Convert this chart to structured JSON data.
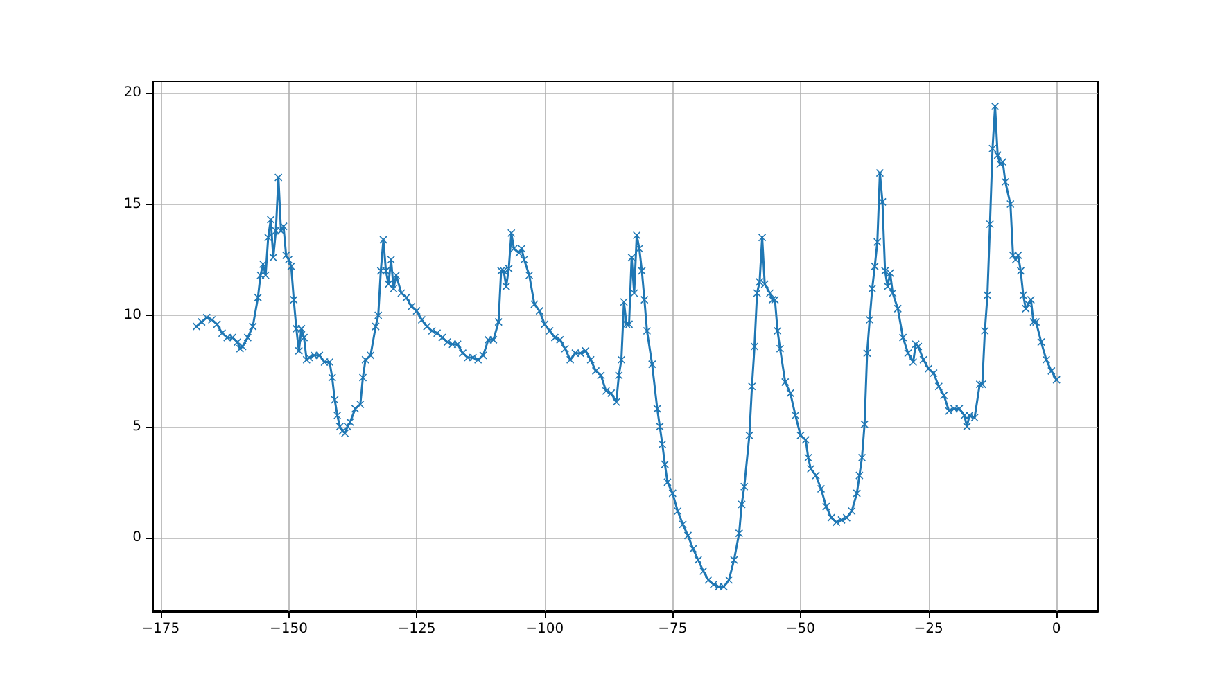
{
  "chart_data": {
    "type": "line",
    "color": "#1f77b4",
    "marker": "cross",
    "line_style": "solid",
    "grid": true,
    "x": [
      -168,
      -167,
      -166,
      -165,
      -164,
      -163,
      -162,
      -161,
      -160,
      -159.5,
      -159,
      -158,
      -157,
      -156,
      -155.5,
      -155,
      -154.5,
      -154,
      -153.5,
      -153,
      -152.5,
      -152,
      -151.5,
      -151,
      -150.5,
      -150,
      -149.5,
      -149,
      -148.5,
      -148,
      -147.5,
      -147,
      -146.5,
      -146,
      -145,
      -144,
      -143,
      -142,
      -141.5,
      -141,
      -140.5,
      -140,
      -139.5,
      -139,
      -138.5,
      -138,
      -137,
      -136,
      -135.5,
      -135,
      -134,
      -133,
      -132.5,
      -132,
      -131.5,
      -131,
      -130.5,
      -130,
      -129.5,
      -129,
      -128,
      -127,
      -126,
      -125,
      -124,
      -123,
      -122,
      -121,
      -120,
      -119,
      -118,
      -117,
      -116,
      -115,
      -114,
      -113,
      -112,
      -111,
      -110,
      -109,
      -108.5,
      -108,
      -107.5,
      -107,
      -106.5,
      -106,
      -105,
      -104.5,
      -104,
      -103,
      -102,
      -101,
      -100,
      -99,
      -98,
      -97,
      -96,
      -95,
      -94,
      -93,
      -92,
      -91,
      -90,
      -89,
      -88,
      -87,
      -86,
      -85.5,
      -85,
      -84.5,
      -84,
      -83.5,
      -83,
      -82.5,
      -82,
      -81.5,
      -81,
      -80.5,
      -80,
      -79,
      -78,
      -77.5,
      -77,
      -76.5,
      -76,
      -75,
      -74,
      -73,
      -72,
      -71,
      -70,
      -69,
      -68,
      -67,
      -66,
      -65,
      -64,
      -63,
      -62,
      -61.5,
      -61,
      -60,
      -59.5,
      -59,
      -58.5,
      -58,
      -57.5,
      -57,
      -56,
      -55.5,
      -55,
      -54.5,
      -54,
      -53,
      -52,
      -51,
      -50,
      -49,
      -48.5,
      -48,
      -47,
      -46,
      -45,
      -44,
      -43,
      -42,
      -41,
      -40,
      -39,
      -38.5,
      -38,
      -37.5,
      -37,
      -36.5,
      -36,
      -35.5,
      -35,
      -34.5,
      -34,
      -33.5,
      -33,
      -32.5,
      -32,
      -31,
      -30,
      -29,
      -28,
      -27.5,
      -27,
      -26,
      -25,
      -24,
      -23,
      -22,
      -21,
      -20,
      -19,
      -18,
      -17.5,
      -17,
      -16,
      -15,
      -14.5,
      -14,
      -13.5,
      -13,
      -12.5,
      -12,
      -11.5,
      -11,
      -10.5,
      -10,
      -9,
      -8.5,
      -8,
      -7.5,
      -7,
      -6.5,
      -6,
      -5.5,
      -5,
      -4.5,
      -4,
      -3,
      -2,
      -1,
      0
    ],
    "values": [
      9.5,
      9.7,
      9.9,
      9.8,
      9.6,
      9.2,
      9.0,
      9.0,
      8.8,
      8.5,
      8.6,
      9.0,
      9.5,
      10.8,
      11.8,
      12.3,
      11.8,
      13.5,
      14.3,
      12.6,
      13.8,
      16.2,
      13.8,
      14.0,
      12.7,
      12.5,
      12.2,
      10.7,
      9.4,
      8.4,
      9.4,
      9.0,
      8.0,
      8.1,
      8.2,
      8.2,
      7.9,
      7.9,
      7.2,
      6.2,
      5.5,
      5.0,
      4.8,
      4.7,
      5.0,
      5.2,
      5.8,
      6.0,
      7.2,
      8.0,
      8.2,
      9.5,
      10.0,
      12.0,
      13.4,
      12.0,
      11.4,
      12.5,
      11.2,
      11.8,
      11.0,
      10.8,
      10.4,
      10.2,
      9.8,
      9.5,
      9.3,
      9.2,
      9.0,
      8.8,
      8.7,
      8.7,
      8.3,
      8.1,
      8.1,
      8.0,
      8.2,
      8.9,
      8.9,
      9.7,
      12.0,
      12.0,
      11.3,
      12.1,
      13.7,
      13.0,
      12.8,
      13.0,
      12.5,
      11.8,
      10.5,
      10.2,
      9.6,
      9.3,
      9.0,
      8.9,
      8.5,
      8.0,
      8.3,
      8.3,
      8.4,
      8.0,
      7.5,
      7.3,
      6.6,
      6.5,
      6.1,
      7.3,
      8.0,
      10.6,
      9.6,
      9.6,
      12.6,
      11.0,
      13.6,
      13.0,
      12.0,
      10.7,
      9.3,
      7.8,
      5.8,
      5.0,
      4.2,
      3.3,
      2.5,
      2.0,
      1.2,
      0.6,
      0.1,
      -0.5,
      -1.0,
      -1.5,
      -1.9,
      -2.1,
      -2.2,
      -2.2,
      -1.9,
      -1.0,
      0.2,
      1.5,
      2.3,
      4.6,
      6.8,
      8.6,
      11.0,
      11.5,
      13.5,
      11.4,
      11.0,
      10.7,
      10.7,
      9.3,
      8.5,
      7.0,
      6.5,
      5.5,
      4.6,
      4.4,
      3.6,
      3.1,
      2.8,
      2.2,
      1.4,
      0.9,
      0.7,
      0.8,
      0.9,
      1.2,
      2.0,
      2.8,
      3.6,
      5.1,
      8.3,
      9.8,
      11.2,
      12.2,
      13.3,
      16.4,
      15.1,
      12.0,
      11.3,
      11.9,
      11.0,
      10.3,
      9.0,
      8.3,
      7.9,
      8.7,
      8.6,
      8.0,
      7.6,
      7.4,
      6.8,
      6.4,
      5.7,
      5.8,
      5.8,
      5.5,
      5.0,
      5.5,
      5.4,
      6.9,
      6.9,
      9.3,
      10.9,
      14.1,
      17.5,
      19.4,
      17.2,
      16.8,
      16.9,
      16.0,
      15.0,
      12.7,
      12.5,
      12.7,
      12.0,
      10.9,
      10.3,
      10.5,
      10.7,
      9.7,
      9.7,
      8.8,
      8.0,
      7.5,
      7.1
    ],
    "xlim": [
      -176.6,
      8.1
    ],
    "ylim": [
      -3.3,
      20.5
    ],
    "xticks": [
      {
        "value": -175,
        "label": "−175"
      },
      {
        "value": -150,
        "label": "−150"
      },
      {
        "value": -125,
        "label": "−125"
      },
      {
        "value": -100,
        "label": "−100"
      },
      {
        "value": -75,
        "label": "−75"
      },
      {
        "value": -50,
        "label": "−50"
      },
      {
        "value": -25,
        "label": "−25"
      },
      0
    ],
    "yticks": [
      0,
      5,
      10,
      15,
      20
    ]
  }
}
